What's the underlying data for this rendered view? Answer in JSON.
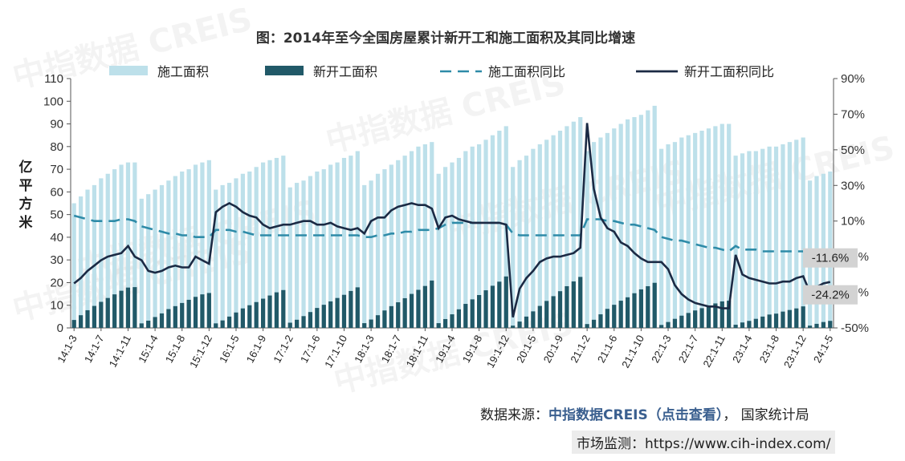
{
  "title": "图：2014年至今全国房屋累计新开工和施工面积及其同比增速",
  "legend": [
    {
      "label": "施工面积",
      "kind": "bar",
      "color": "#bde0ea"
    },
    {
      "label": "新开工面积",
      "kind": "bar",
      "color": "#215968"
    },
    {
      "label": "施工面积同比",
      "kind": "dash",
      "color": "#2e8ba8"
    },
    {
      "label": "新开工面积同比",
      "kind": "line",
      "color": "#1b2a44"
    }
  ],
  "ylabel_chars": [
    "亿",
    "平",
    "方",
    "米"
  ],
  "left_ticks": [
    "110",
    "100",
    "90",
    "80",
    "70",
    "60",
    "50",
    "40",
    "30",
    "20",
    "10",
    "0"
  ],
  "right_ticks": [
    "90%",
    "70%",
    "50%",
    "30%",
    "10%",
    "-10%",
    "-30%",
    "-50%"
  ],
  "x_ticks": [
    "14:1-3",
    "14:1-7",
    "14:1-11",
    "15:1-4",
    "15:1-8",
    "15:1-12",
    "16:1-5",
    "16:1-9",
    "17:1-2",
    "17:1-6",
    "17:1-10",
    "18:1-3",
    "18:1-7",
    "18:1-11",
    "19:1-4",
    "19:1-8",
    "19:1-12",
    "20:1-5",
    "20:1-9",
    "21:1-2",
    "21:1-6",
    "21:1-10",
    "22:1-3",
    "22:1-7",
    "22:1-11",
    "23:1-4",
    "23:1-8",
    "23:1-12",
    "24:1-5"
  ],
  "callouts": [
    {
      "text": "-11.6%"
    },
    {
      "text": "-24.2%"
    }
  ],
  "watermark": "中指数据 CREIS",
  "source": {
    "prefix": "数据来源：",
    "brand": "中指数据CREIS（点击查看）",
    "suffix": "， 国家统计局"
  },
  "monitor": "市场监测：https://www.cih-index.com/",
  "chart_data": {
    "type": "bar+line",
    "left_axis": {
      "min": 0,
      "max": 110,
      "step": 10,
      "label": "亿平方米"
    },
    "right_axis": {
      "min": -50,
      "max": 90,
      "step": 20,
      "unit": "%"
    },
    "years": [
      {
        "year": 2014,
        "months": [
          3,
          4,
          5,
          6,
          7,
          8,
          9,
          10,
          11,
          12
        ],
        "construction": [
          55,
          58,
          61,
          63,
          66,
          68,
          70,
          72,
          73,
          73
        ],
        "new_starts": [
          3.5,
          5.6,
          7.8,
          9.7,
          11.5,
          13.2,
          14.8,
          16.4,
          17.8,
          18.0
        ],
        "construction_yoy": [
          13,
          12,
          11,
          10,
          10,
          10,
          10,
          11,
          11,
          10
        ],
        "new_starts_yoy": [
          -25,
          -22,
          -18,
          -15,
          -12,
          -10,
          -9,
          -8,
          -4,
          -10
        ]
      },
      {
        "year": 2015,
        "months": [
          2,
          3,
          4,
          5,
          6,
          7,
          8,
          9,
          10,
          11,
          12
        ],
        "construction": [
          57,
          59,
          61,
          63,
          65,
          67,
          69,
          70,
          72,
          73,
          74
        ],
        "new_starts": [
          2.0,
          3.2,
          4.8,
          6.4,
          8.3,
          9.6,
          11.0,
          12.4,
          13.7,
          14.8,
          15.4
        ],
        "construction_yoy": [
          7,
          6,
          5,
          4,
          3,
          3,
          2,
          2,
          1,
          1,
          1
        ],
        "new_starts_yoy": [
          -12,
          -18,
          -19,
          -18,
          -16,
          -15,
          -16,
          -16,
          -10,
          -12,
          -14
        ]
      },
      {
        "year": 2016,
        "months": [
          2,
          3,
          4,
          5,
          6,
          7,
          8,
          9,
          10,
          11,
          12
        ],
        "construction": [
          61,
          63,
          64,
          66,
          68,
          69,
          71,
          73,
          74,
          75,
          76
        ],
        "new_starts": [
          2.0,
          3.3,
          5.0,
          6.8,
          8.6,
          10.0,
          11.4,
          12.9,
          14.3,
          15.7,
          16.7
        ],
        "construction_yoy": [
          5,
          5,
          5,
          4,
          4,
          3,
          2,
          2,
          2,
          2,
          2
        ],
        "new_starts_yoy": [
          15,
          18,
          20,
          18,
          15,
          13,
          12,
          8,
          6,
          7,
          8
        ]
      },
      {
        "year": 2017,
        "months": [
          2,
          3,
          4,
          5,
          6,
          7,
          8,
          9,
          10,
          11,
          12
        ],
        "construction": [
          62,
          64,
          65,
          67,
          69,
          70,
          72,
          73,
          75,
          76,
          78
        ],
        "new_starts": [
          2.3,
          3.6,
          5.2,
          7.0,
          8.8,
          10.2,
          11.7,
          13.2,
          14.6,
          16.3,
          17.9
        ],
        "construction_yoy": [
          2,
          2,
          2,
          2,
          2,
          2,
          2,
          2,
          2,
          2,
          2
        ],
        "new_starts_yoy": [
          8,
          9,
          10,
          10,
          8,
          8,
          9,
          7,
          6,
          5,
          6
        ]
      },
      {
        "year": 2018,
        "months": [
          2,
          3,
          4,
          5,
          6,
          7,
          8,
          9,
          10,
          11,
          12
        ],
        "construction": [
          63,
          65,
          68,
          70,
          72,
          74,
          76,
          78,
          80,
          81,
          82
        ],
        "new_starts": [
          2.1,
          3.7,
          5.6,
          7.7,
          9.6,
          11.3,
          13.1,
          15.0,
          16.8,
          18.5,
          20.9
        ],
        "construction_yoy": [
          1,
          1,
          2,
          2,
          3,
          3,
          4,
          4,
          5,
          5,
          5
        ],
        "new_starts_yoy": [
          3,
          10,
          12,
          12,
          16,
          18,
          19,
          20,
          19,
          19,
          17
        ]
      },
      {
        "year": 2019,
        "months": [
          2,
          3,
          4,
          5,
          6,
          7,
          8,
          9,
          10,
          11,
          12
        ],
        "construction": [
          68,
          71,
          73,
          75,
          78,
          80,
          81,
          83,
          85,
          87,
          89
        ],
        "new_starts": [
          2.1,
          3.9,
          6.0,
          8.2,
          10.6,
          12.6,
          14.5,
          16.6,
          18.6,
          20.4,
          22.7
        ],
        "construction_yoy": [
          6,
          8,
          9,
          9,
          9,
          9,
          9,
          9,
          9,
          9,
          8
        ],
        "new_starts_yoy": [
          6,
          12,
          13,
          11,
          10,
          9,
          9,
          9,
          9,
          9,
          8
        ]
      },
      {
        "year": 2020,
        "months": [
          2,
          3,
          4,
          5,
          6,
          7,
          8,
          9,
          10,
          11,
          12
        ],
        "construction": [
          71,
          74,
          76,
          79,
          81,
          83,
          85,
          87,
          89,
          91,
          93
        ],
        "new_starts": [
          1.0,
          2.8,
          5.0,
          7.3,
          9.7,
          11.9,
          14.0,
          16.2,
          18.4,
          20.5,
          22.5
        ],
        "construction_yoy": [
          3,
          2,
          2,
          2,
          2,
          2,
          2,
          2,
          2,
          2,
          2
        ],
        "new_starts_yoy": [
          -44,
          -28,
          -22,
          -18,
          -13,
          -11,
          -10,
          -10,
          -9,
          -8,
          -5
        ]
      },
      {
        "year": 2021,
        "months": [
          2,
          3,
          4,
          5,
          6,
          7,
          8,
          9,
          10,
          11,
          12
        ],
        "construction": [
          78,
          82,
          84,
          86,
          88,
          90,
          92,
          93,
          94,
          96,
          98
        ],
        "new_starts": [
          1.7,
          3.6,
          6.0,
          8.4,
          10.2,
          12.0,
          13.5,
          15.3,
          17.0,
          18.4,
          19.9
        ],
        "construction_yoy": [
          11,
          11,
          11,
          10,
          10,
          9,
          8,
          8,
          7,
          6,
          5
        ],
        "new_starts_yoy": [
          65,
          28,
          12,
          6,
          4,
          -2,
          -4,
          -8,
          -11,
          -13,
          -13
        ]
      },
      {
        "year": 2022,
        "months": [
          2,
          3,
          4,
          5,
          6,
          7,
          8,
          9,
          10,
          11,
          12
        ],
        "construction": [
          79,
          81,
          82,
          84,
          85,
          86,
          87,
          88,
          89,
          90,
          90
        ],
        "new_starts": [
          1.3,
          2.6,
          4.0,
          5.4,
          6.6,
          7.7,
          8.7,
          9.6,
          10.8,
          11.7,
          12.0
        ],
        "construction_yoy": [
          1,
          0,
          -1,
          -1,
          -2,
          -3,
          -4,
          -5,
          -5,
          -6,
          -7
        ],
        "new_starts_yoy": [
          -13,
          -17,
          -26,
          -31,
          -34,
          -36,
          -37,
          -38,
          -38,
          -39,
          -39
        ]
      },
      {
        "year": 2023,
        "months": [
          2,
          3,
          4,
          5,
          6,
          7,
          8,
          9,
          10,
          11,
          12
        ],
        "construction": [
          76,
          77,
          78,
          78,
          79,
          80,
          80,
          81,
          82,
          83,
          84
        ],
        "new_starts": [
          1.4,
          2.4,
          3.1,
          4.0,
          5.0,
          5.9,
          6.3,
          7.2,
          7.9,
          8.6,
          9.5
        ],
        "construction_yoy": [
          -4,
          -6,
          -6,
          -6,
          -7,
          -7,
          -7,
          -7,
          -7,
          -7,
          -7
        ],
        "new_starts_yoy": [
          -9,
          -20,
          -22,
          -23,
          -24,
          -25,
          -25,
          -24,
          -24,
          -22,
          -21
        ]
      },
      {
        "year": 2024,
        "months": [
          2,
          3,
          4,
          5
        ],
        "construction": [
          65,
          67,
          68,
          69
        ],
        "new_starts": [
          1.0,
          1.8,
          2.6,
          3.1
        ],
        "construction_yoy": [
          -11,
          -11,
          -11,
          -11.6
        ],
        "new_starts_yoy": [
          -30,
          -27,
          -25,
          -24.2
        ]
      }
    ]
  }
}
